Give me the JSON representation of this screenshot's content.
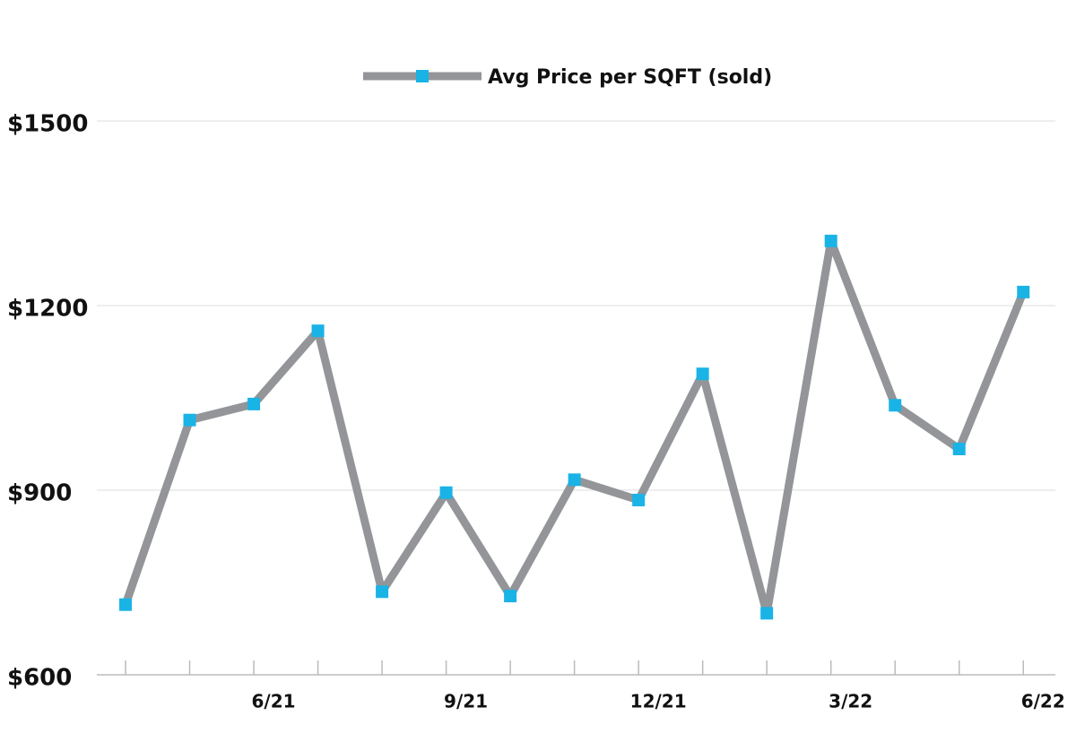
{
  "chart_data": {
    "type": "line",
    "categories": [
      null,
      null,
      "6/21",
      null,
      null,
      "9/21",
      null,
      null,
      "12/21",
      null,
      null,
      "3/22",
      null,
      null,
      "6/22"
    ],
    "series": [
      {
        "name": "Avg Price per SQFT (sold)",
        "color": "#939598",
        "marker_color": "#1ab3e6",
        "values": [
          714,
          1014,
          1040,
          1159,
          735,
          896,
          728,
          917,
          884,
          1089,
          700,
          1305,
          1038,
          967,
          1222
        ]
      }
    ],
    "ylim": [
      600,
      1500
    ],
    "yticks": [
      {
        "value": 600,
        "label": "$600"
      },
      {
        "value": 900,
        "label": "$900"
      },
      {
        "value": 1200,
        "label": "$1200"
      },
      {
        "value": 1500,
        "label": "$1500"
      }
    ],
    "grid": true,
    "legend": "top"
  }
}
